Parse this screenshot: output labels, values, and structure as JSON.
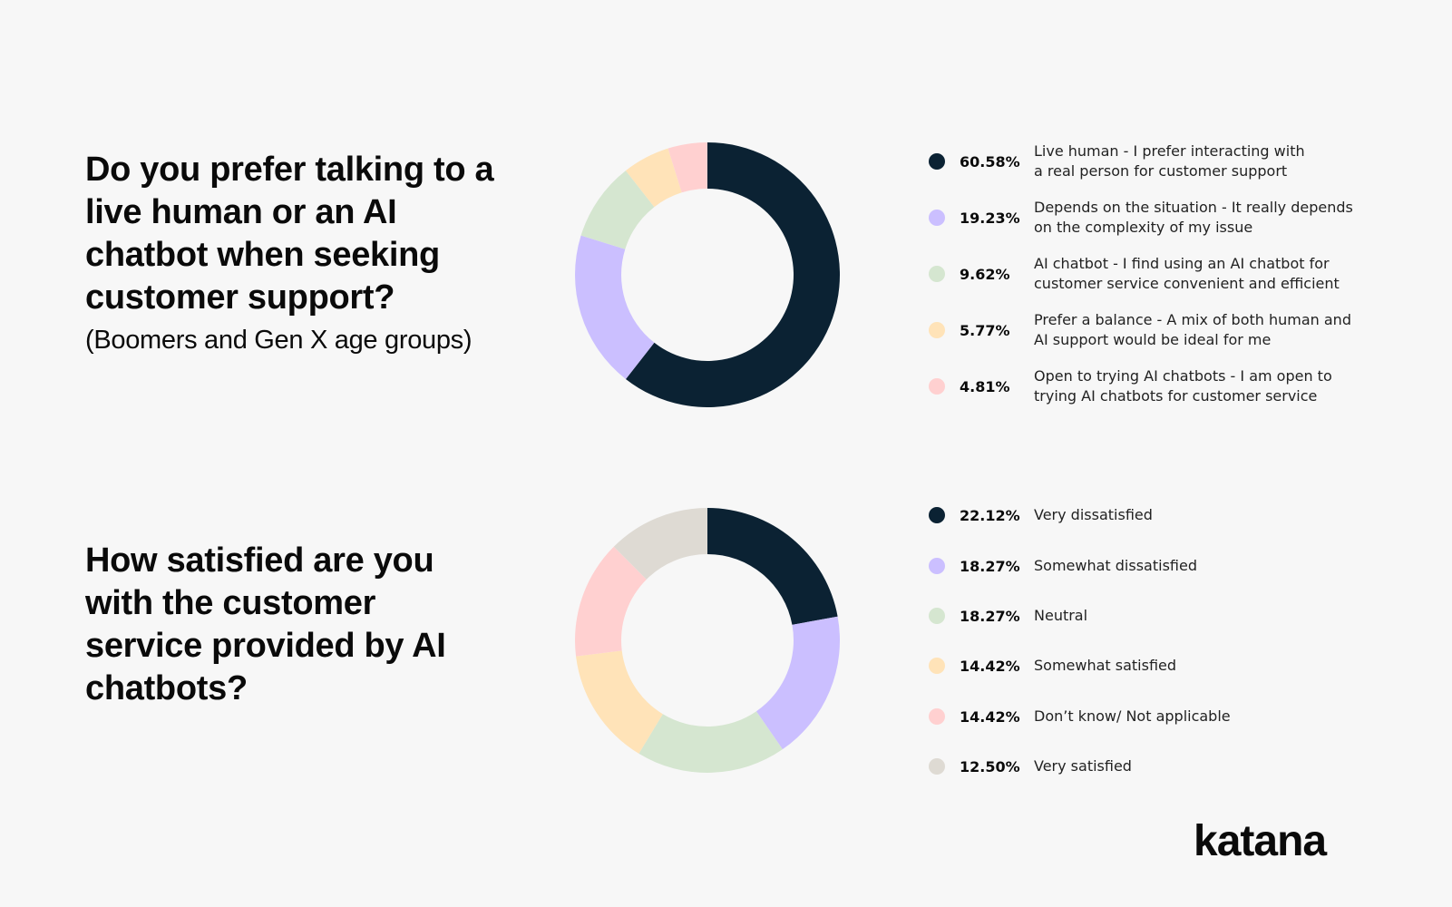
{
  "chart_data": [
    {
      "type": "pie",
      "title": "Do you prefer talking to a live human or an AI chatbot when seeking customer support?",
      "subtitle": "(Boomers and Gen X age groups)",
      "legend_position": "right",
      "slices": [
        {
          "pct_label": "60.58%",
          "value": 60.58,
          "label": "Live human - I prefer interacting with\na real person for customer support",
          "color": "#0b2233"
        },
        {
          "pct_label": "19.23%",
          "value": 19.23,
          "label": "Depends on the situation - It really depends\non the complexity of my issue",
          "color": "#cbbfff"
        },
        {
          "pct_label": "9.62%",
          "value": 9.62,
          "label": "AI chatbot - I find using an AI chatbot for\ncustomer service convenient and efficient",
          "color": "#d5e6d0"
        },
        {
          "pct_label": "5.77%",
          "value": 5.77,
          "label": "Prefer a balance - A mix of both human and\nAI support would be ideal for me",
          "color": "#ffe3b8"
        },
        {
          "pct_label": "4.81%",
          "value": 4.81,
          "label": "Open to trying AI chatbots - I am open to\ntrying AI chatbots for customer service",
          "color": "#ffd0d0"
        }
      ]
    },
    {
      "type": "pie",
      "title": "How satisfied are you with the customer service provided by AI chatbots?",
      "legend_position": "right",
      "slices": [
        {
          "pct_label": "22.12%",
          "value": 22.12,
          "label": "Very dissatisfied",
          "color": "#0b2233"
        },
        {
          "pct_label": "18.27%",
          "value": 18.27,
          "label": "Somewhat dissatisfied",
          "color": "#cbbfff"
        },
        {
          "pct_label": "18.27%",
          "value": 18.27,
          "label": "Neutral",
          "color": "#d5e6d0"
        },
        {
          "pct_label": "14.42%",
          "value": 14.42,
          "label": "Somewhat satisfied",
          "color": "#ffe3b8"
        },
        {
          "pct_label": "14.42%",
          "value": 14.42,
          "label": "Don’t know/ Not applicable",
          "color": "#ffd0d0"
        },
        {
          "pct_label": "12.50%",
          "value": 12.5,
          "label": "Very satisfied",
          "color": "#dedad3"
        }
      ]
    }
  ],
  "logo": "katana"
}
